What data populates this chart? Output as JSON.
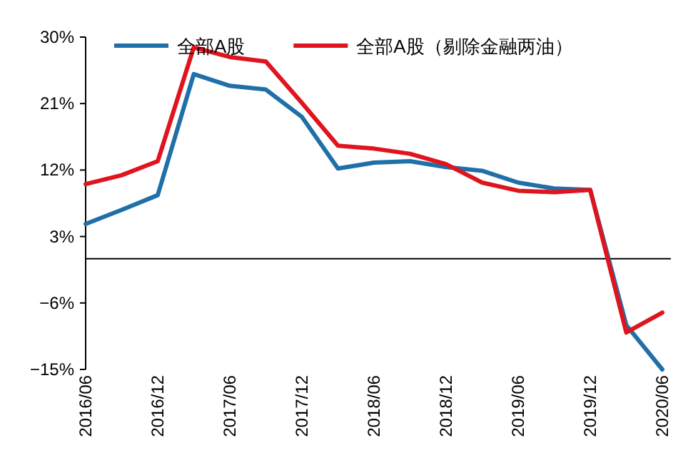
{
  "chart_data": {
    "type": "line",
    "categories": [
      "2016/06",
      null,
      "2016/12",
      null,
      "2017/06",
      null,
      "2017/12",
      null,
      "2018/06",
      null,
      "2018/12",
      null,
      "2019/06",
      null,
      "2019/12",
      null,
      "2020/06"
    ],
    "series": [
      {
        "name": "全部A股",
        "color": "#1f6fa8",
        "values": [
          4.7,
          6.6,
          8.6,
          25.0,
          23.4,
          22.9,
          19.2,
          12.2,
          13.0,
          13.2,
          12.4,
          11.9,
          10.3,
          9.5,
          9.3,
          -9.0,
          -15.0
        ]
      },
      {
        "name": "全部A股（剔除金融两油）",
        "color": "#e0141e",
        "values": [
          10.1,
          11.3,
          13.2,
          28.6,
          27.3,
          26.7,
          21.1,
          15.3,
          14.9,
          14.2,
          12.8,
          10.3,
          9.2,
          9.0,
          9.3,
          -10.0,
          -7.3
        ]
      }
    ],
    "ylim": [
      -15,
      30
    ],
    "yticks": [
      {
        "value": -15,
        "label": "−15%"
      },
      {
        "value": -6,
        "label": "−6%"
      },
      {
        "value": 3,
        "label": "3%"
      },
      {
        "value": 12,
        "label": "12%"
      },
      {
        "value": 21,
        "label": "21%"
      },
      {
        "value": 30,
        "label": "30%"
      }
    ],
    "ref_lines": [
      {
        "axis": "y",
        "value": 0,
        "color": "#000000"
      }
    ],
    "legend": "top",
    "grid": false,
    "marker": "none",
    "line_style": "solid"
  }
}
